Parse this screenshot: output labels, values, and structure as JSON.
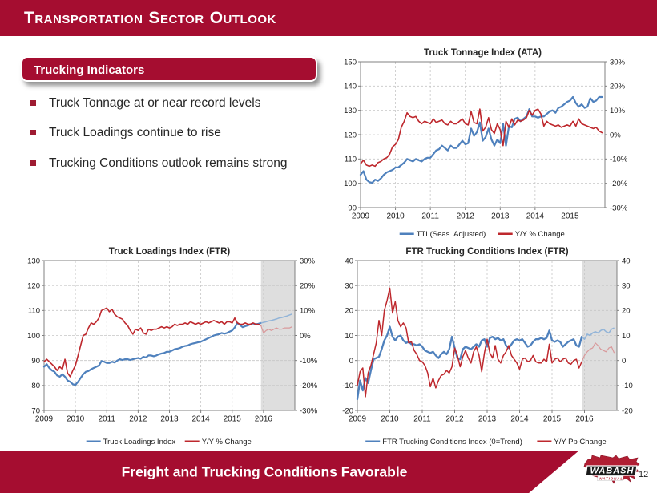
{
  "slide": {
    "header": {
      "title_parts": [
        "T",
        "ransportation",
        "S",
        "ector",
        "O",
        "utlook"
      ]
    },
    "section_box": {
      "label": "Trucking Indicators"
    },
    "bullets": [
      "Truck Tonnage at or near record levels",
      "Truck Loadings continue to rise",
      "Trucking Conditions outlook remains strong"
    ],
    "footer": {
      "message": "Freight and Trucking Conditions Favorable",
      "page_number": "12",
      "logo": {
        "line1": "WABASH",
        "line2": "NATIONAL"
      }
    },
    "colors": {
      "brand_red": "#A50D30",
      "bullet_red": "#9E1B32",
      "line_blue": "#4F81BD",
      "line_red": "#BE282D",
      "forecast_blue": "#92B4D8",
      "forecast_red": "#D9999B",
      "forecast_band": "#DEDEDE"
    }
  },
  "chart_data": [
    {
      "type": "line",
      "title": "Truck Tonnage Index (ATA)",
      "x_start": 2009,
      "x_end": 2016,
      "x_ticks": [
        "2009",
        "2010",
        "2011",
        "2012",
        "2013",
        "2014",
        "2015"
      ],
      "left_axis": {
        "min": 90,
        "max": 150,
        "step": 10,
        "suffix": ""
      },
      "right_axis": {
        "min": -30,
        "max": 30,
        "step": 10,
        "suffix": "%"
      },
      "grid": true,
      "legend_position": "bottom",
      "forecast_start": null,
      "series": [
        {
          "name": "TTI (Seas. Adjusted)",
          "axis": "left",
          "color": "#4F81BD",
          "light_color": "#92B4D8",
          "width": 2.2,
          "values": [
            103.5,
            105,
            101.5,
            100.5,
            100.2,
            101.5,
            101,
            102,
            103.5,
            104.5,
            105,
            105.5,
            106.5,
            106.5,
            107.5,
            108.5,
            110,
            109.5,
            109,
            110,
            109.5,
            109,
            110,
            110.5,
            110.5,
            112,
            113.5,
            114,
            115.5,
            114.5,
            113.5,
            115.5,
            114.5,
            114.5,
            116,
            117.5,
            116,
            116.5,
            122.5,
            119.5,
            121,
            125,
            117.5,
            119,
            122.5,
            118,
            115.5,
            118,
            116.5,
            124.5,
            115.5,
            123.5,
            123,
            126.5,
            127,
            125.5,
            126.5,
            127.5,
            130.5,
            127.5,
            127.5,
            127,
            127.5,
            127.5,
            128.5,
            129.5,
            130,
            129,
            131,
            131.5,
            132.5,
            133.5,
            134,
            135.5,
            133,
            131.5,
            132.5,
            131,
            131.5,
            135,
            133.5,
            134,
            135.5,
            135.5
          ]
        },
        {
          "name": "Y/Y % Change",
          "axis": "right",
          "color": "#BE282D",
          "light_color": "#D9999B",
          "width": 1.6,
          "values": [
            -12,
            -10.5,
            -12.5,
            -13,
            -12.5,
            -13,
            -11.5,
            -11,
            -10,
            -9.5,
            -8,
            -5,
            -4,
            -2,
            3,
            5.5,
            9,
            7.5,
            7,
            7.5,
            5.5,
            4.5,
            5.5,
            5,
            4.5,
            6.5,
            5,
            5.5,
            6,
            4.5,
            4,
            5.5,
            4.5,
            4.5,
            5.5,
            6.5,
            4.5,
            4,
            9.5,
            5,
            4.5,
            10.5,
            1.5,
            3,
            7,
            2,
            0.5,
            4.5,
            2,
            -4.5,
            5.5,
            3,
            6.5,
            4,
            6,
            5.5,
            6,
            7,
            10,
            8,
            10,
            10.5,
            8.5,
            3.5,
            5.5,
            4.5,
            4,
            3.5,
            4,
            3,
            3.5,
            4,
            3.5,
            5.5,
            3.5,
            6.5,
            4.5,
            4,
            3.5,
            3,
            2.5,
            3,
            1.5,
            0.8
          ]
        }
      ]
    },
    {
      "type": "line",
      "title": "Truck Loadings Index (FTR)",
      "x_start": 2009,
      "x_end": 2017,
      "x_ticks": [
        "2009",
        "2010",
        "2011",
        "2012",
        "2013",
        "2014",
        "2015",
        "2016"
      ],
      "left_axis": {
        "min": 70,
        "max": 130,
        "step": 10,
        "suffix": ""
      },
      "right_axis": {
        "min": -30,
        "max": 30,
        "step": 10,
        "suffix": "%"
      },
      "grid": true,
      "legend_position": "bottom",
      "forecast_start": 2015.92,
      "series": [
        {
          "name": "Truck Loadings Index",
          "axis": "left",
          "color": "#4F81BD",
          "light_color": "#92B4D8",
          "width": 2.2,
          "values": [
            87.5,
            88.5,
            87,
            86,
            85.5,
            84,
            83.5,
            84.5,
            83.5,
            82,
            81.5,
            80.5,
            80.2,
            81.5,
            83,
            84.5,
            85.5,
            85.8,
            86.5,
            87,
            87.5,
            88,
            89.8,
            89.5,
            89,
            89,
            89.5,
            89.2,
            90,
            90.5,
            90.2,
            90.5,
            90.5,
            90.2,
            90.5,
            90.8,
            91,
            90.7,
            91.5,
            91.2,
            92,
            92,
            91.7,
            92,
            92.5,
            92.8,
            93,
            93.5,
            93.5,
            94,
            94.5,
            94.7,
            95,
            95.5,
            95.8,
            96,
            96.5,
            96.8,
            97,
            97.3,
            97.5,
            98,
            98.5,
            99,
            99.5,
            100,
            100.3,
            100.5,
            101,
            100.7,
            101,
            101.5,
            102,
            103.2,
            105,
            104.2,
            103.3,
            103.7,
            104,
            104.5,
            104.8,
            104.5,
            104.7,
            105,
            105.2,
            105.5,
            105.8,
            106,
            106.3,
            106.6,
            107,
            107.2,
            107.5,
            107.8,
            108.2,
            108.6
          ]
        },
        {
          "name": "Y/Y % Change",
          "axis": "right",
          "color": "#BE282D",
          "light_color": "#D9999B",
          "width": 1.6,
          "values": [
            -10.5,
            -9.5,
            -10.5,
            -11.5,
            -12.5,
            -14,
            -12.5,
            -13.5,
            -9.5,
            -15,
            -16.5,
            -14,
            -12,
            -8,
            -4,
            0,
            0.5,
            3,
            5,
            4.5,
            5.5,
            7,
            10,
            10.5,
            11,
            9.5,
            10.5,
            8.5,
            7.5,
            7,
            6.5,
            5,
            4,
            2,
            0.5,
            2.5,
            2,
            3,
            1,
            0.5,
            2.5,
            2,
            2.5,
            2.5,
            3,
            3.5,
            3,
            3.5,
            3,
            3.5,
            4.5,
            4,
            4.5,
            4.5,
            5,
            4.5,
            5.5,
            5,
            4.5,
            5,
            4.5,
            5,
            5.5,
            5,
            5.5,
            6,
            5.5,
            5,
            5.5,
            4.5,
            5.5,
            5.5,
            5,
            7,
            5,
            4.5,
            4.5,
            5,
            4.5,
            4.5,
            5,
            4.5,
            4.5,
            4,
            1,
            2,
            2.5,
            2,
            2.5,
            3,
            2.5,
            2.5,
            3,
            3,
            3,
            3.5
          ]
        }
      ]
    },
    {
      "type": "line",
      "title": "FTR Trucking Conditions Index (FTR)",
      "x_start": 2009,
      "x_end": 2017,
      "x_ticks": [
        "2009",
        "2010",
        "2011",
        "2012",
        "2013",
        "2014",
        "2015",
        "2016"
      ],
      "left_axis": {
        "min": -20,
        "max": 40,
        "step": 10,
        "suffix": ""
      },
      "right_axis": {
        "min": -20,
        "max": 40,
        "step": 10,
        "suffix": ""
      },
      "grid": true,
      "legend_position": "bottom",
      "forecast_start": 2015.92,
      "series": [
        {
          "name": "FTR Trucking Conditions Index (0=Trend)",
          "axis": "left",
          "color": "#4F81BD",
          "light_color": "#92B4D8",
          "width": 2.3,
          "values": [
            -15.5,
            -8,
            -12,
            -7,
            -9,
            -4,
            0.5,
            1,
            1.5,
            4.5,
            8,
            10,
            13.5,
            9.5,
            8,
            9.5,
            10,
            8,
            7,
            7.5,
            6.5,
            6.5,
            6,
            6.5,
            5.5,
            4,
            3.5,
            3,
            3.5,
            2,
            1,
            2.5,
            3.5,
            2.5,
            4.5,
            9.5,
            5,
            1,
            0.5,
            4.5,
            5.5,
            5,
            4.5,
            5.5,
            6.5,
            5.5,
            8,
            8.5,
            5.5,
            9,
            9.5,
            8.5,
            9,
            8,
            8.5,
            6,
            5,
            6.5,
            8,
            8.5,
            8,
            8.5,
            7,
            5.5,
            6,
            7.5,
            8.5,
            8.5,
            9,
            8.5,
            9,
            12,
            8,
            7.5,
            8,
            7.5,
            5.5,
            6.5,
            7.5,
            8,
            8.5,
            6,
            5.5,
            9.5,
            8.5,
            10.5,
            10,
            11,
            11.5,
            11,
            12,
            12.5,
            11.5,
            11,
            12.5,
            13
          ]
        },
        {
          "name": "Y/Y Pp Change",
          "axis": "right",
          "color": "#BE282D",
          "light_color": "#D9999B",
          "width": 1.5,
          "values": [
            -10,
            -4.5,
            -3,
            -14.5,
            -5,
            -2,
            2.5,
            7,
            16,
            10,
            20,
            24,
            29,
            19,
            23.5,
            16,
            13.5,
            15,
            13,
            7,
            7.5,
            4,
            2.5,
            0,
            -0.5,
            -2,
            -5,
            -10.5,
            -7,
            -11,
            -8,
            -6,
            -5.5,
            -4,
            -5,
            -2.5,
            5,
            2,
            -2.5,
            1.5,
            4,
            1,
            -1,
            3.5,
            5.5,
            2,
            -4.5,
            3,
            8.5,
            3,
            1,
            6,
            0.5,
            -1,
            2,
            3.5,
            6,
            2,
            0.5,
            -1,
            -3.5,
            0.5,
            1,
            -0.5,
            0,
            2,
            -0.5,
            -1,
            -1,
            0.5,
            -0.5,
            6.5,
            -1,
            0.5,
            1,
            -0.5,
            0.5,
            1,
            -1,
            -1.5,
            0,
            0.5,
            -3,
            -0.5,
            2,
            3.5,
            4.5,
            5,
            7,
            6,
            4.5,
            4,
            3.5,
            5,
            5.5,
            3
          ]
        }
      ]
    }
  ]
}
